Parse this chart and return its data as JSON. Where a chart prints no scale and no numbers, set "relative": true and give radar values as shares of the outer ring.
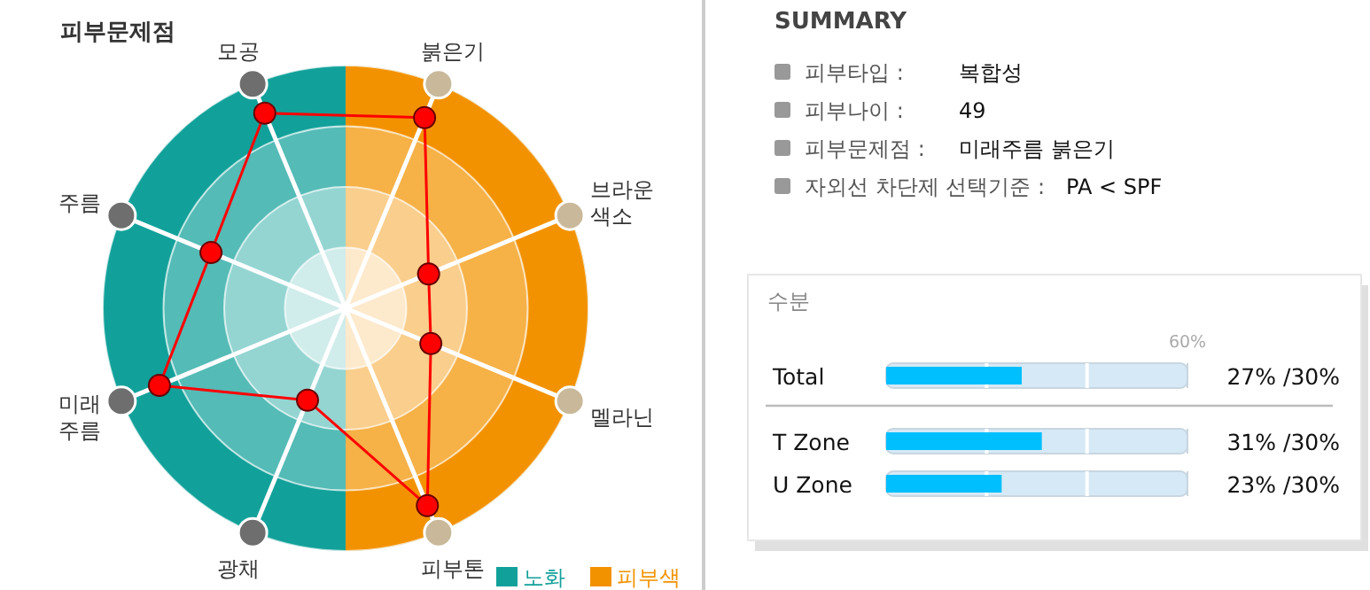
{
  "chart_data": [
    {
      "type": "radar",
      "title": "피부문제점",
      "categories": [
        "붉은기",
        "브라운\n색소",
        "멜라닌",
        "피부톤",
        "광채",
        "미래\n주름",
        "주름",
        "모공"
      ],
      "relative": true,
      "marker": "circle",
      "grid": true,
      "series": [
        {
          "color": "#ff0000",
          "values": [
            0.85,
            0.37,
            0.38,
            0.88,
            0.41,
            0.83,
            0.6,
            0.87
          ]
        }
      ],
      "annotations": [
        "노화",
        "피부색"
      ]
    },
    {
      "type": "other",
      "title": "SUMMARY",
      "annotations": [
        "피부타입 :",
        "복합성",
        "피부나이 :",
        "49",
        "피부문제점 :",
        "미래주름  붉은기",
        "자외선 차단제 선택기준 :",
        "PA < SPF"
      ]
    },
    {
      "type": "bar",
      "orientation": "horizontal",
      "title": "수분",
      "categories": [
        "Total",
        "T Zone",
        "U Zone"
      ],
      "values": [
        27,
        31,
        23
      ],
      "value_labels": [
        "27% /30%",
        "31% /30%",
        "23% /30%"
      ],
      "color": "#00bfff",
      "xlim": [
        0,
        60
      ],
      "xticks": [
        {
          "value": 20,
          "label": null
        },
        {
          "value": 40,
          "label": null
        },
        {
          "value": 60,
          "label": "60%"
        }
      ]
    }
  ]
}
